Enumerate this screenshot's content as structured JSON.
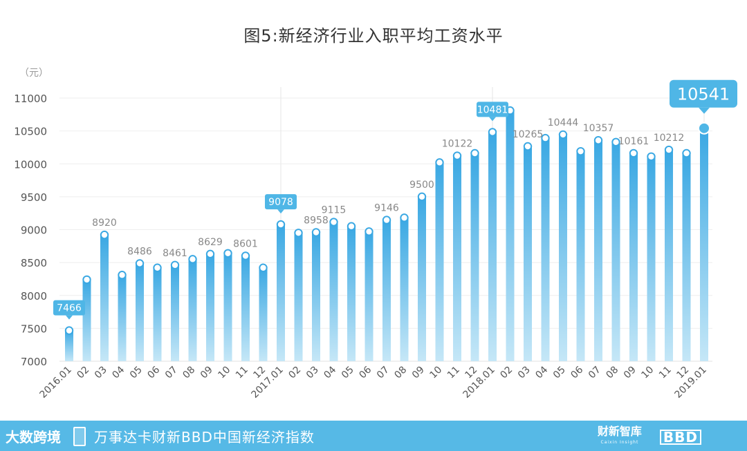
{
  "chart_data": {
    "type": "bar",
    "title": "图5:新经济行业入职平均工资水平",
    "ylabel": "（元）",
    "ylim": [
      7000,
      11000
    ],
    "yticks": [
      7000,
      7500,
      8000,
      8500,
      9000,
      9500,
      10000,
      10500,
      11000
    ],
    "grid": true,
    "categories": [
      "2016.01",
      "02",
      "03",
      "04",
      "05",
      "06",
      "07",
      "08",
      "09",
      "10",
      "11",
      "12",
      "2017.01",
      "02",
      "03",
      "04",
      "05",
      "06",
      "07",
      "08",
      "09",
      "10",
      "11",
      "12",
      "2018.01",
      "02",
      "03",
      "04",
      "05",
      "06",
      "07",
      "08",
      "09",
      "10",
      "11",
      "12",
      "2019.01"
    ],
    "values": [
      7466,
      8240,
      8920,
      8310,
      8486,
      8420,
      8461,
      8550,
      8629,
      8640,
      8601,
      8420,
      9078,
      8950,
      8958,
      9115,
      9050,
      8970,
      9146,
      9180,
      9500,
      10020,
      10122,
      10160,
      10481,
      10810,
      10265,
      10390,
      10444,
      10190,
      10357,
      10330,
      10161,
      10110,
      10212,
      10160,
      10541
    ],
    "value_labels": [
      {
        "index": 0,
        "text": "7466",
        "style": "callout"
      },
      {
        "index": 2,
        "text": "8920",
        "style": "plain"
      },
      {
        "index": 4,
        "text": "8486",
        "style": "plain"
      },
      {
        "index": 6,
        "text": "8461",
        "style": "plain"
      },
      {
        "index": 8,
        "text": "8629",
        "style": "plain"
      },
      {
        "index": 10,
        "text": "8601",
        "style": "plain"
      },
      {
        "index": 12,
        "text": "9078",
        "style": "callout"
      },
      {
        "index": 14,
        "text": "8958",
        "style": "plain"
      },
      {
        "index": 15,
        "text": "9115",
        "style": "plain"
      },
      {
        "index": 18,
        "text": "9146",
        "style": "plain"
      },
      {
        "index": 20,
        "text": "9500",
        "style": "plain"
      },
      {
        "index": 22,
        "text": "10122",
        "style": "plain"
      },
      {
        "index": 24,
        "text": "10481",
        "style": "callout"
      },
      {
        "index": 26,
        "text": "10265",
        "style": "plain"
      },
      {
        "index": 28,
        "text": "10444",
        "style": "plain"
      },
      {
        "index": 30,
        "text": "10357",
        "style": "plain"
      },
      {
        "index": 32,
        "text": "10161",
        "style": "plain"
      },
      {
        "index": 34,
        "text": "10212",
        "style": "plain"
      },
      {
        "index": 36,
        "text": "10541",
        "style": "big-callout"
      }
    ],
    "bar_color": "#47b3e8",
    "year_dividers": [
      12,
      24,
      36
    ]
  },
  "footer": {
    "brand": "大数跨境",
    "text": "万事达卡财新BBD中国新经济指数",
    "logo_caixin": "财新智库",
    "logo_caixin_sub": "Caixin Insight",
    "logo_bbd": "BBD"
  },
  "colors": {
    "footer_bg": "#56b9e6",
    "callout_bg": "#4fb6e6",
    "label_gray": "#888888",
    "axis_text": "#555555"
  }
}
